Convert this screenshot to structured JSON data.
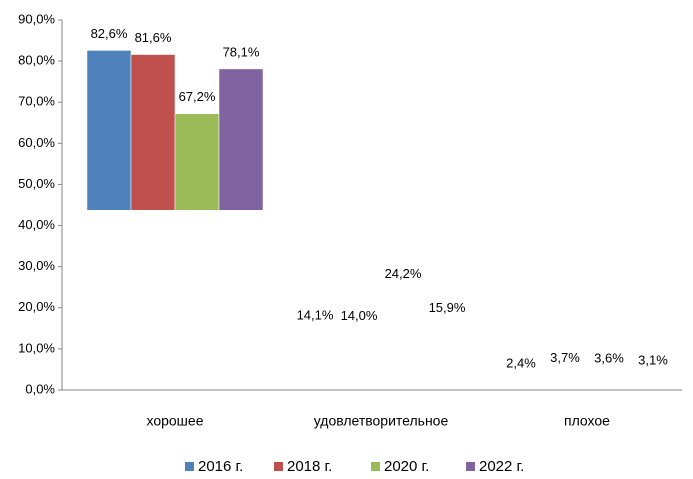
{
  "chart_data": {
    "type": "bar",
    "categories": [
      "хорошее",
      "удовлетворительное",
      "плохое"
    ],
    "series": [
      {
        "name": "2016 г.",
        "color": "#4f81bd",
        "values": [
          82.6,
          14.1,
          2.4
        ],
        "value_labels": [
          "82,6%",
          "14,1%",
          "2,4%"
        ]
      },
      {
        "name": "2018 г.",
        "color": "#c0504d",
        "values": [
          81.6,
          14.0,
          3.7
        ],
        "value_labels": [
          "81,6%",
          "14,0%",
          "3,7%"
        ]
      },
      {
        "name": "2020 г.",
        "color": "#9bbb59",
        "values": [
          67.2,
          24.2,
          3.6
        ],
        "value_labels": [
          "67,2%",
          "24,2%",
          "3,6%"
        ]
      },
      {
        "name": "2022 г.",
        "color": "#8064a2",
        "values": [
          78.1,
          15.9,
          3.1
        ],
        "value_labels": [
          "78,1%",
          "15,9%",
          "3,1%"
        ]
      }
    ],
    "ylim": [
      0,
      90
    ],
    "yticks": [
      {
        "value": 0,
        "label": "0,0%"
      },
      {
        "value": 10,
        "label": "10,0%"
      },
      {
        "value": 20,
        "label": "20,0%"
      },
      {
        "value": 30,
        "label": "30,0%"
      },
      {
        "value": 40,
        "label": "40,0%"
      },
      {
        "value": 50,
        "label": "50,0%"
      },
      {
        "value": 60,
        "label": "60,0%"
      },
      {
        "value": 70,
        "label": "70,0%"
      },
      {
        "value": 80,
        "label": "80,0%"
      },
      {
        "value": 90,
        "label": "90,0%"
      }
    ],
    "legend": "bottom",
    "grid": false
  }
}
